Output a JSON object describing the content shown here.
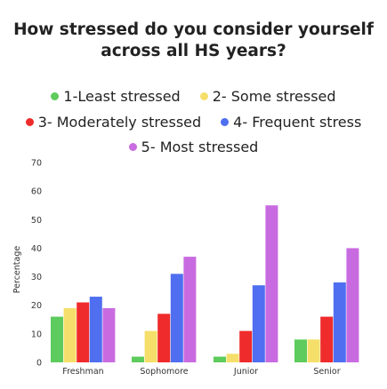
{
  "title": "How stressed do you consider yourself across all HS years?",
  "chart_data": {
    "type": "bar",
    "title": "How stressed do you consider yourself across all HS years?",
    "xlabel": "",
    "ylabel": "Percentage",
    "ylim": [
      0,
      70
    ],
    "yticks": [
      0,
      10,
      20,
      30,
      40,
      50,
      60,
      70
    ],
    "categories": [
      "Freshman",
      "Sophomore",
      "Junior",
      "Senior"
    ],
    "legend_position": "top",
    "grid": false,
    "series": [
      {
        "name": "1-Least stressed",
        "color": "#5dcb5d",
        "values": [
          16,
          2,
          2,
          8
        ]
      },
      {
        "name": "2- Some stressed",
        "color": "#f5df6a",
        "values": [
          19,
          11,
          3,
          8
        ]
      },
      {
        "name": "3- Moderately stressed",
        "color": "#ef2b2b",
        "values": [
          21,
          17,
          11,
          16
        ]
      },
      {
        "name": "4- Frequent stress",
        "color": "#4f6ff0",
        "values": [
          23,
          31,
          27,
          28
        ]
      },
      {
        "name": "5- Most stressed",
        "color": "#c96be0",
        "values": [
          19,
          37,
          55,
          40
        ]
      }
    ]
  }
}
